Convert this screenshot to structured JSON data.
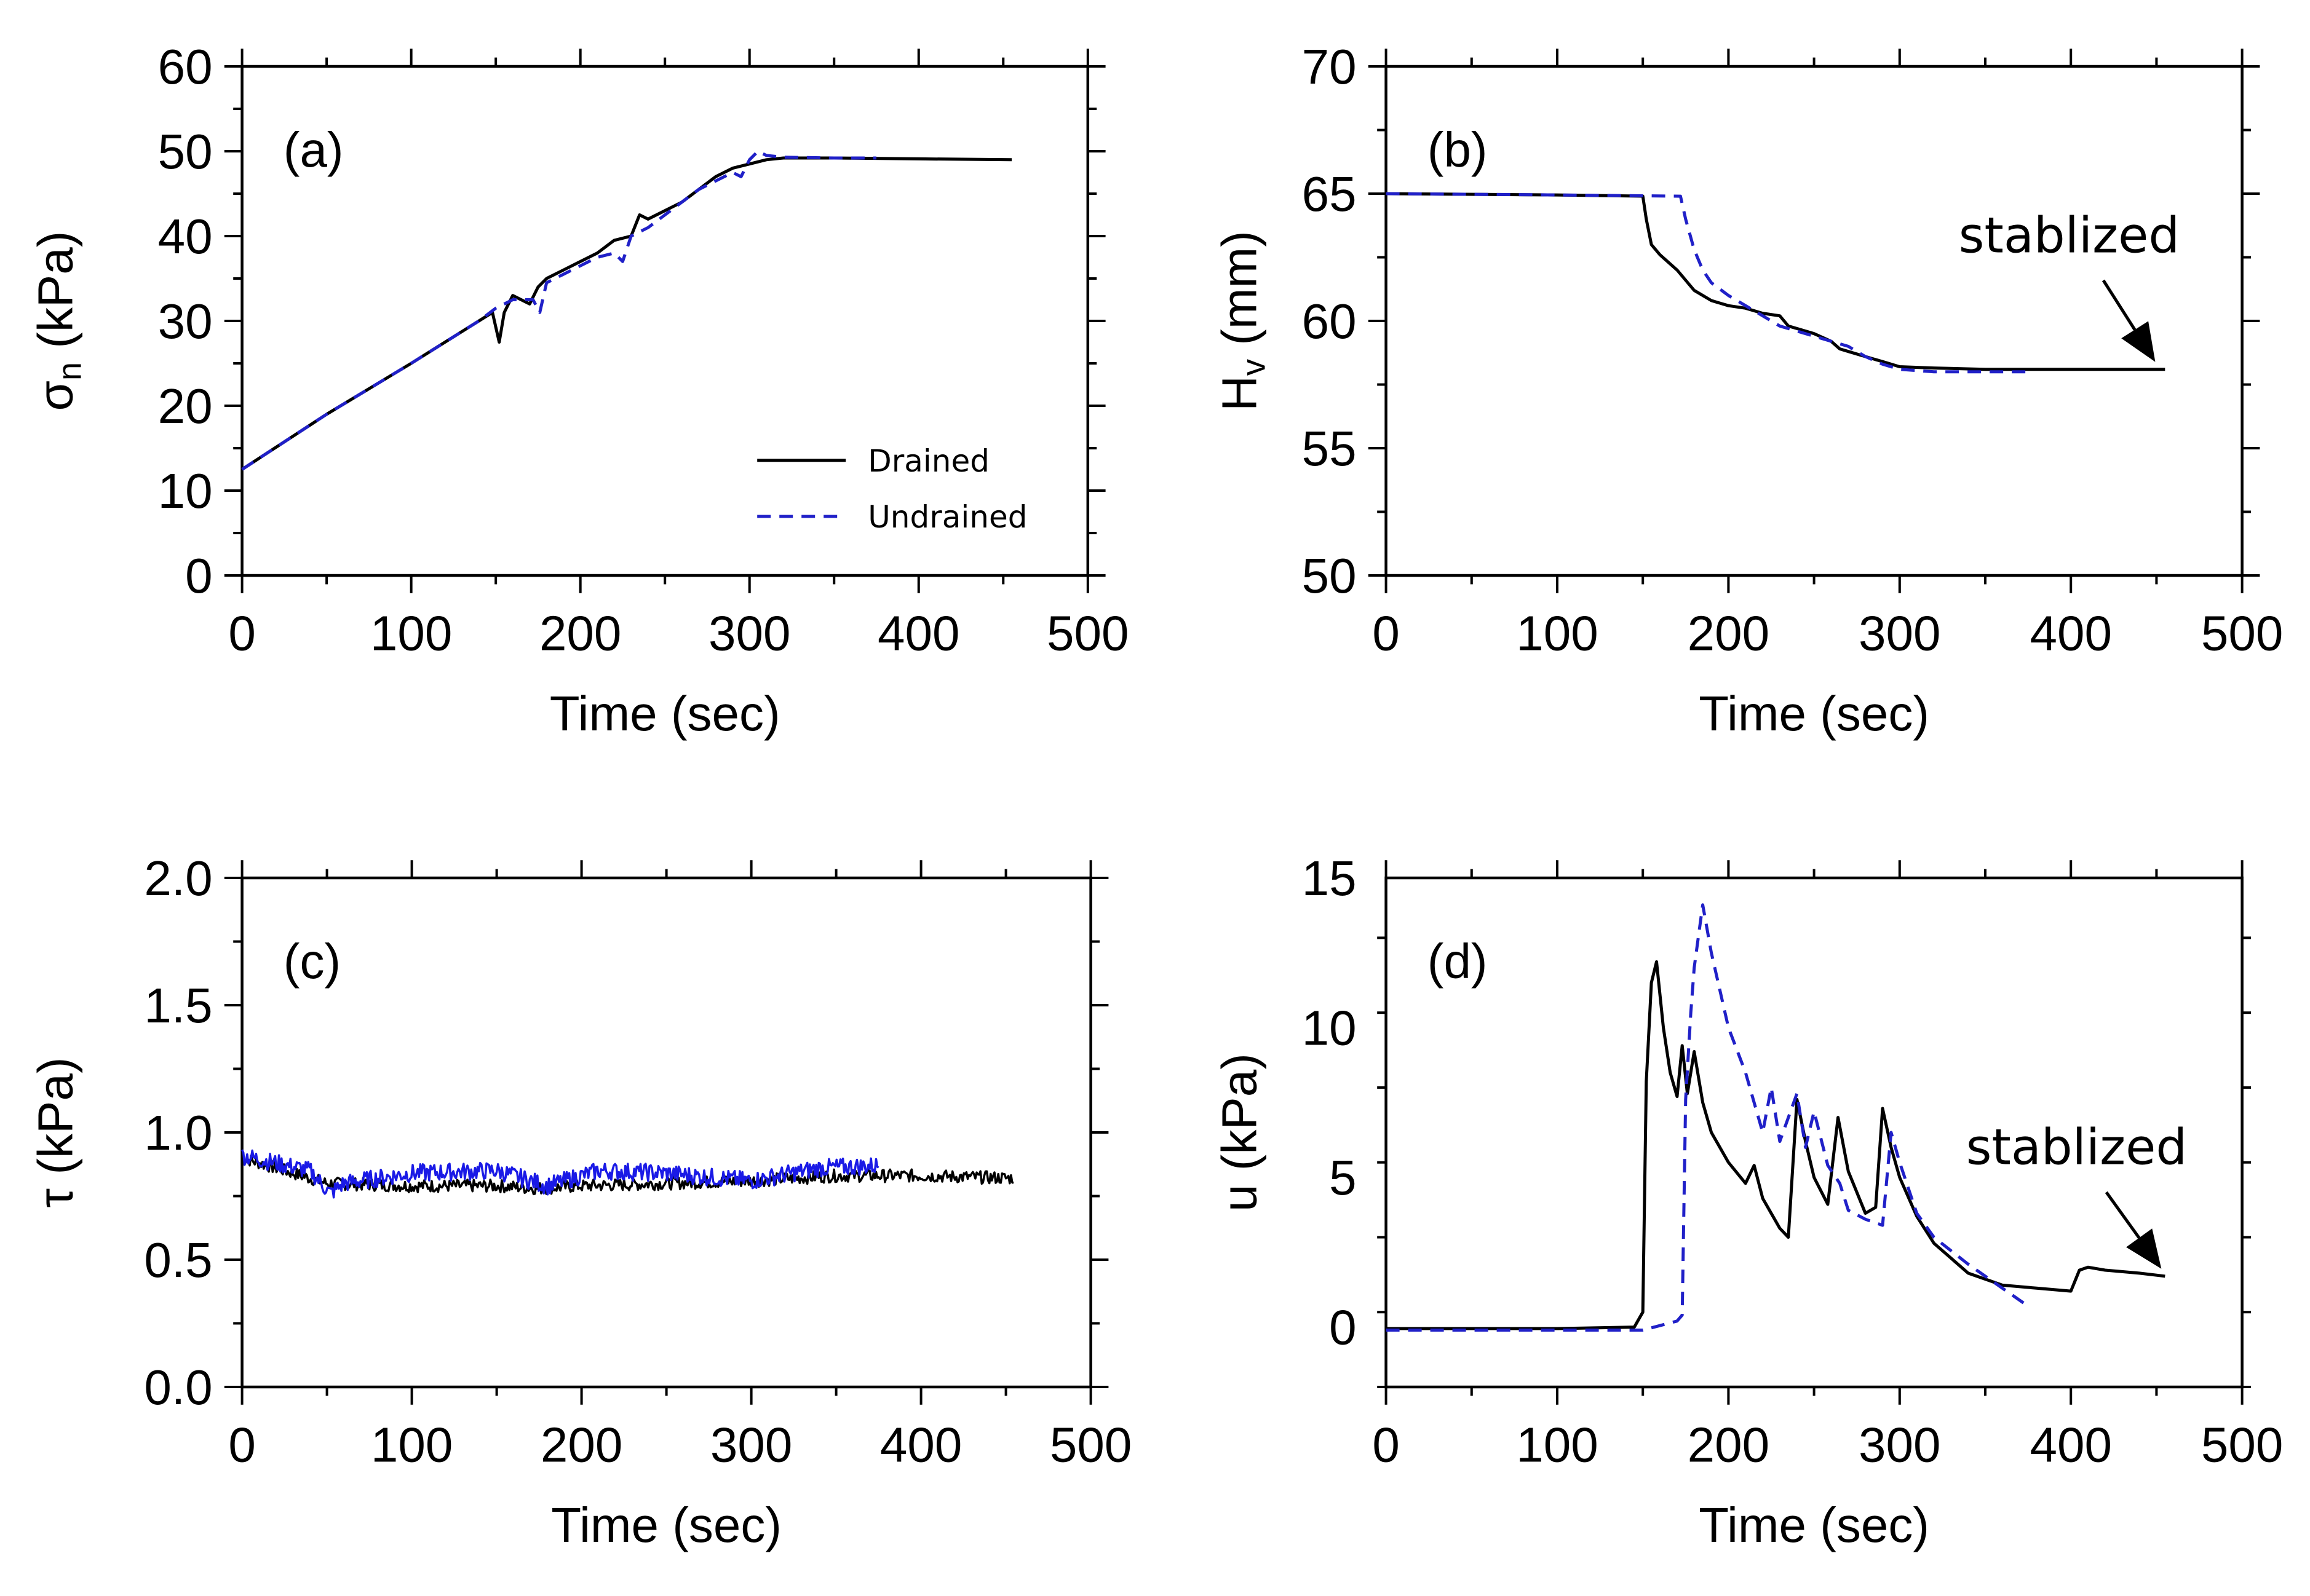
{
  "colors": {
    "drained": "#000000",
    "undrained": "#2020c8",
    "tau_undrained": "#1a1ae6",
    "axis": "#000000"
  },
  "chart_data": [
    {
      "id": "a",
      "type": "line",
      "panel_label": "(a)",
      "xlabel": "Time (sec)",
      "ylabel": "σn (kPa)",
      "ylabel_main": "σ",
      "ylabel_sub": "n",
      "ylabel_rest": " (kPa)",
      "xlim": [
        0,
        500
      ],
      "ylim": [
        0,
        60
      ],
      "xticks": [
        0,
        100,
        200,
        300,
        400,
        500
      ],
      "yticks": [
        0,
        10,
        20,
        30,
        40,
        50,
        60
      ],
      "xtick_labels": [
        "0",
        "100",
        "200",
        "300",
        "400",
        "500"
      ],
      "ytick_labels": [
        "0",
        "10",
        "20",
        "30",
        "40",
        "50",
        "60"
      ],
      "legend": {
        "position": "bottom-right",
        "entries": [
          "Drained",
          "Undrained"
        ]
      },
      "series": [
        {
          "name": "Drained",
          "style": "solid",
          "x": [
            0,
            50,
            100,
            140,
            148,
            152,
            155,
            160,
            165,
            170,
            175,
            180,
            190,
            200,
            210,
            220,
            230,
            235,
            240,
            250,
            260,
            270,
            280,
            290,
            300,
            310,
            320,
            350,
            400,
            455
          ],
          "y": [
            12.5,
            19,
            25,
            30,
            31,
            27.5,
            31,
            33,
            32.5,
            32,
            34,
            35,
            36,
            37,
            38,
            39.5,
            40,
            42.5,
            42,
            43,
            44,
            45.5,
            47,
            48,
            48.5,
            49,
            49.2,
            49.2,
            49.1,
            49.0
          ]
        },
        {
          "name": "Undrained",
          "style": "dashed",
          "x": [
            0,
            50,
            100,
            140,
            150,
            160,
            172,
            176,
            180,
            190,
            200,
            210,
            220,
            225,
            230,
            240,
            250,
            260,
            270,
            280,
            290,
            295,
            300,
            305,
            310,
            320,
            350,
            375
          ],
          "y": [
            12.5,
            19,
            25,
            30,
            31.5,
            32.5,
            32.5,
            31,
            34.5,
            35.5,
            36.5,
            37.5,
            38,
            37,
            40,
            41,
            42.5,
            44,
            45.5,
            46.5,
            47.5,
            47,
            49,
            50,
            49.5,
            49.3,
            49.2,
            49.2
          ]
        }
      ]
    },
    {
      "id": "b",
      "type": "line",
      "panel_label": "(b)",
      "xlabel": "Time (sec)",
      "ylabel": "Hv (mm)",
      "ylabel_main": "H",
      "ylabel_sub": "v",
      "ylabel_rest": " (mm)",
      "xlim": [
        0,
        500
      ],
      "ylim": [
        50,
        70
      ],
      "xticks": [
        0,
        100,
        200,
        300,
        400,
        500
      ],
      "yticks": [
        50,
        55,
        60,
        65,
        70
      ],
      "xtick_labels": [
        "0",
        "100",
        "200",
        "300",
        "400",
        "500"
      ],
      "ytick_labels": [
        "50",
        "55",
        "60",
        "65",
        "70"
      ],
      "annotation": {
        "text": "stablized",
        "target_x": 450,
        "target_y": 58.1
      },
      "series": [
        {
          "name": "Drained",
          "style": "solid",
          "x": [
            0,
            100,
            150,
            152,
            155,
            160,
            170,
            180,
            190,
            200,
            210,
            220,
            230,
            235,
            240,
            250,
            260,
            265,
            270,
            280,
            290,
            300,
            320,
            350,
            400,
            455
          ],
          "y": [
            65,
            64.95,
            64.9,
            64,
            63,
            62.6,
            62,
            61.2,
            60.8,
            60.6,
            60.5,
            60.3,
            60.2,
            59.8,
            59.7,
            59.5,
            59.2,
            58.9,
            58.8,
            58.6,
            58.4,
            58.2,
            58.15,
            58.1,
            58.1,
            58.1
          ]
        },
        {
          "name": "Undrained",
          "style": "dashed",
          "x": [
            0,
            100,
            172,
            175,
            180,
            185,
            190,
            200,
            210,
            220,
            230,
            240,
            250,
            260,
            270,
            280,
            290,
            300,
            320,
            350,
            375
          ],
          "y": [
            65,
            64.95,
            64.9,
            64,
            62.8,
            62,
            61.5,
            61,
            60.6,
            60.2,
            59.8,
            59.6,
            59.4,
            59.2,
            59,
            58.6,
            58.3,
            58.1,
            58,
            58,
            58
          ]
        }
      ]
    },
    {
      "id": "c",
      "type": "line",
      "panel_label": "(c)",
      "xlabel": "Time (sec)",
      "ylabel": "τ (kPa)",
      "xlim": [
        0,
        500
      ],
      "ylim": [
        0.0,
        2.0
      ],
      "xticks": [
        0,
        100,
        200,
        300,
        400,
        500
      ],
      "yticks": [
        0.0,
        0.5,
        1.0,
        1.5,
        2.0
      ],
      "xtick_labels": [
        "0",
        "100",
        "200",
        "300",
        "400",
        "500"
      ],
      "ytick_labels": [
        "0.0",
        "0.5",
        "1.0",
        "1.5",
        "2.0"
      ],
      "series": [
        {
          "name": "Drained",
          "style": "solid",
          "noise": 0.025,
          "x": [
            0,
            20,
            50,
            100,
            150,
            175,
            200,
            250,
            300,
            350,
            400,
            455
          ],
          "y": [
            0.9,
            0.86,
            0.8,
            0.79,
            0.79,
            0.78,
            0.79,
            0.8,
            0.81,
            0.83,
            0.83,
            0.82
          ]
        },
        {
          "name": "Undrained",
          "style": "solid",
          "noise": 0.035,
          "x": [
            0,
            20,
            40,
            52,
            60,
            100,
            150,
            180,
            210,
            250,
            300,
            340,
            375
          ],
          "y": [
            0.91,
            0.88,
            0.85,
            0.76,
            0.8,
            0.84,
            0.85,
            0.79,
            0.85,
            0.84,
            0.81,
            0.86,
            0.87
          ]
        }
      ]
    },
    {
      "id": "d",
      "type": "line",
      "panel_label": "(d)",
      "xlabel": "Time (sec)",
      "ylabel": "u (kPa)",
      "xlim": [
        0,
        500
      ],
      "ylim": [
        -2,
        15
      ],
      "xticks": [
        0,
        100,
        200,
        300,
        400,
        500
      ],
      "yticks": [
        0,
        5,
        10,
        15
      ],
      "xtick_labels": [
        "0",
        "100",
        "200",
        "300",
        "400",
        "500"
      ],
      "ytick_labels": [
        "0",
        "5",
        "10",
        "15"
      ],
      "annotation": {
        "text": "stablized",
        "target_x": 455,
        "target_y": 1.7
      },
      "series": [
        {
          "name": "Drained",
          "style": "solid",
          "x": [
            0,
            100,
            145,
            150,
            152,
            153,
            155,
            158,
            162,
            166,
            170,
            173,
            176,
            180,
            185,
            190,
            200,
            210,
            215,
            220,
            230,
            235,
            240,
            245,
            250,
            258,
            264,
            270,
            280,
            286,
            290,
            295,
            300,
            310,
            320,
            340,
            360,
            380,
            400,
            405,
            410,
            420,
            440,
            455
          ],
          "y": [
            -0.05,
            -0.05,
            0,
            0.5,
            8.2,
            9.3,
            11.5,
            12.2,
            10,
            8.5,
            7.7,
            9.4,
            7.8,
            9.2,
            7.5,
            6.5,
            5.5,
            4.8,
            5.4,
            4.3,
            3.3,
            3.0,
            7.6,
            6.2,
            5.0,
            4.1,
            7.0,
            5.2,
            3.8,
            4.0,
            7.3,
            6,
            5,
            3.7,
            2.8,
            1.8,
            1.4,
            1.3,
            1.2,
            1.9,
            2.0,
            1.9,
            1.8,
            1.7
          ]
        },
        {
          "name": "Undrained",
          "style": "dashed",
          "x": [
            0,
            150,
            170,
            173,
            175,
            178,
            180,
            185,
            190,
            200,
            210,
            220,
            225,
            230,
            240,
            245,
            250,
            258,
            265,
            270,
            280,
            290,
            295,
            300,
            310,
            320,
            340,
            360,
            375
          ],
          "y": [
            -0.1,
            -0.1,
            0.2,
            0.4,
            7.6,
            10.5,
            12,
            14.1,
            12.5,
            10,
            8.5,
            6.5,
            8.0,
            6.2,
            7.8,
            6.0,
            7.2,
            5.4,
            4.8,
            3.9,
            3.6,
            3.4,
            6.5,
            5.5,
            3.8,
            3.0,
            2.1,
            1.3,
            0.7
          ]
        }
      ]
    }
  ]
}
